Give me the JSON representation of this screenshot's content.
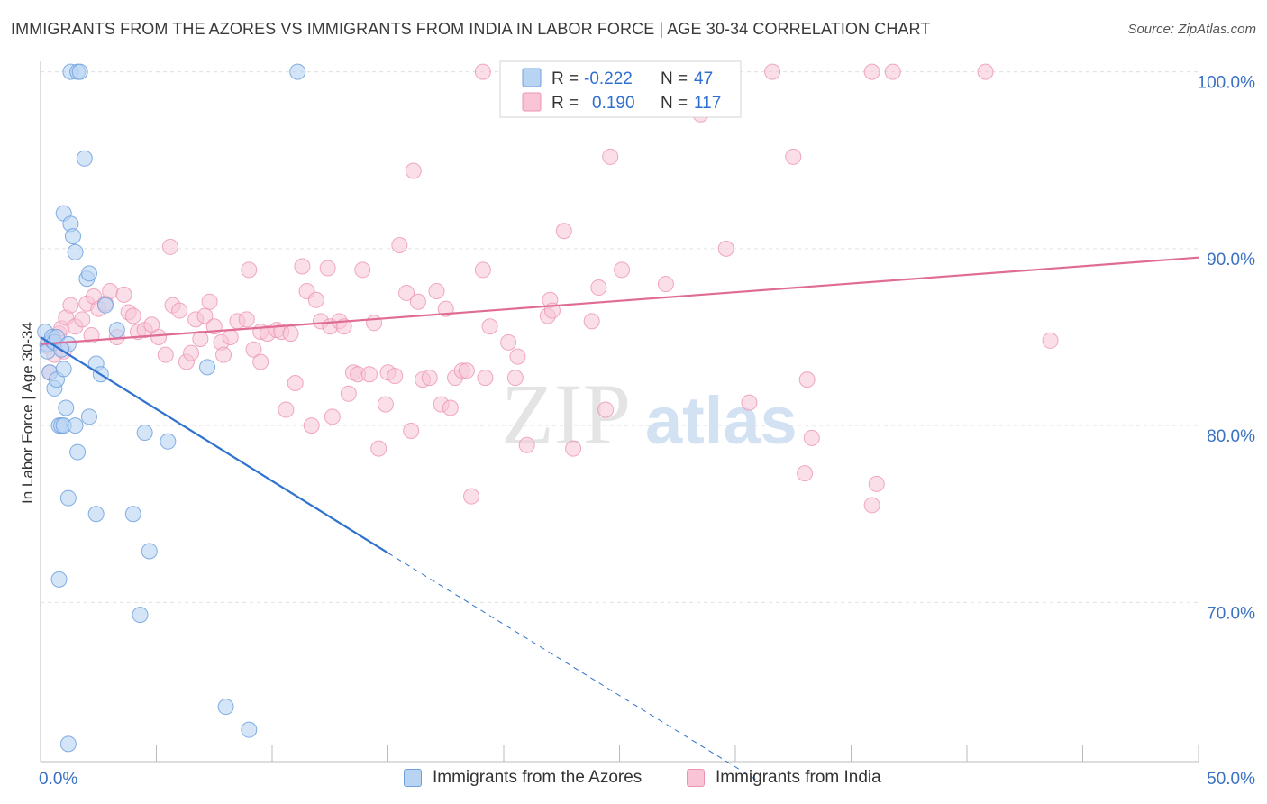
{
  "header": {
    "title": "IMMIGRANTS FROM THE AZORES VS IMMIGRANTS FROM INDIA IN LABOR FORCE | AGE 30-34 CORRELATION CHART",
    "source": "Source: ZipAtlas.com"
  },
  "watermark": {
    "zip": "ZIP",
    "atlas": "atlas"
  },
  "colors": {
    "blue_fill": "#b9d3f3",
    "blue_stroke": "#6fa0de",
    "blue_line": "#2f72d0",
    "pink_fill": "#f8c4d6",
    "pink_stroke": "#ec93b3",
    "pink_line": "#e06b94",
    "axis_label": "#3a72c4",
    "grid": "#e3e3e3"
  },
  "legend_box": {
    "rows": [
      {
        "r_label": "R =",
        "r_value": "-0.222",
        "n_label": "N =",
        "n_value": "47"
      },
      {
        "r_label": "R =",
        "r_value": "0.190",
        "n_label": "N =",
        "n_value": "117"
      }
    ]
  },
  "legend_bottom": {
    "series1": "Immigrants from the Azores",
    "series2": "Immigrants from India"
  },
  "chart_data": {
    "type": "scatter",
    "title": "IMMIGRANTS FROM THE AZORES VS IMMIGRANTS FROM INDIA IN LABOR FORCE | AGE 30-34 CORRELATION CHART",
    "xlabel": "",
    "ylabel": "In Labor Force | Age 30-34",
    "xlim": [
      0,
      50
    ],
    "ylim": [
      61,
      101
    ],
    "x_tick_labels": [
      "0.0%",
      "50.0%"
    ],
    "y_ticks": [
      70,
      80,
      90,
      100
    ],
    "y_tick_labels": [
      "70.0%",
      "80.0%",
      "90.0%",
      "100.0%"
    ],
    "grid": true,
    "series": [
      {
        "name": "Immigrants from the Azores",
        "color": "#b9d3f3",
        "trend": {
          "x": [
            0,
            15
          ],
          "y": [
            85.0,
            72.8
          ],
          "dashed_to": [
            31,
            59.9
          ]
        },
        "points": [
          [
            0.2,
            85.3
          ],
          [
            0.3,
            84.6
          ],
          [
            0.3,
            84.2
          ],
          [
            0.4,
            83.0
          ],
          [
            0.5,
            84.8
          ],
          [
            0.5,
            85.0
          ],
          [
            0.6,
            84.7
          ],
          [
            0.6,
            82.1
          ],
          [
            0.7,
            82.6
          ],
          [
            0.7,
            85.0
          ],
          [
            0.8,
            80.0
          ],
          [
            0.8,
            71.3
          ],
          [
            0.9,
            80.0
          ],
          [
            1.0,
            80.0
          ],
          [
            1.0,
            83.2
          ],
          [
            1.0,
            92.0
          ],
          [
            1.1,
            81.0
          ],
          [
            1.2,
            75.9
          ],
          [
            1.2,
            84.6
          ],
          [
            1.3,
            91.4
          ],
          [
            1.3,
            100.0
          ],
          [
            1.4,
            90.7
          ],
          [
            1.5,
            89.8
          ],
          [
            1.5,
            80.0
          ],
          [
            1.6,
            78.5
          ],
          [
            1.6,
            100.0
          ],
          [
            1.7,
            100.0
          ],
          [
            1.9,
            95.1
          ],
          [
            2.0,
            88.3
          ],
          [
            2.1,
            88.6
          ],
          [
            2.1,
            80.5
          ],
          [
            2.4,
            75.0
          ],
          [
            2.4,
            83.5
          ],
          [
            2.6,
            82.9
          ],
          [
            2.8,
            86.8
          ],
          [
            3.3,
            85.4
          ],
          [
            4.0,
            75.0
          ],
          [
            4.3,
            69.3
          ],
          [
            4.5,
            79.6
          ],
          [
            4.7,
            72.9
          ],
          [
            5.5,
            79.1
          ],
          [
            7.2,
            83.3
          ],
          [
            8.0,
            64.1
          ],
          [
            9.0,
            62.8
          ],
          [
            11.1,
            100.0
          ],
          [
            1.2,
            62.0
          ],
          [
            0.9,
            84.3
          ]
        ]
      },
      {
        "name": "Immigrants from India",
        "color": "#f8c4d6",
        "trend": {
          "x": [
            0,
            50
          ],
          "y": [
            84.6,
            89.5
          ]
        },
        "points": [
          [
            0.3,
            84.5
          ],
          [
            0.4,
            83.0
          ],
          [
            0.5,
            84.8
          ],
          [
            0.6,
            84.0
          ],
          [
            0.8,
            85.2
          ],
          [
            0.9,
            85.5
          ],
          [
            1.0,
            84.2
          ],
          [
            1.1,
            86.1
          ],
          [
            1.3,
            86.8
          ],
          [
            1.5,
            85.6
          ],
          [
            1.8,
            86.0
          ],
          [
            2.0,
            86.9
          ],
          [
            2.2,
            85.1
          ],
          [
            2.3,
            87.3
          ],
          [
            2.5,
            86.6
          ],
          [
            2.8,
            86.9
          ],
          [
            3.0,
            87.6
          ],
          [
            3.3,
            85.0
          ],
          [
            3.6,
            87.4
          ],
          [
            3.8,
            86.4
          ],
          [
            4.0,
            86.2
          ],
          [
            4.2,
            85.3
          ],
          [
            4.5,
            85.4
          ],
          [
            4.8,
            85.7
          ],
          [
            5.1,
            85.0
          ],
          [
            5.4,
            84.0
          ],
          [
            5.7,
            86.8
          ],
          [
            5.6,
            90.1
          ],
          [
            6.0,
            86.5
          ],
          [
            6.3,
            83.6
          ],
          [
            6.5,
            84.1
          ],
          [
            6.7,
            86.0
          ],
          [
            6.9,
            84.9
          ],
          [
            7.1,
            86.2
          ],
          [
            7.3,
            87.0
          ],
          [
            7.5,
            85.6
          ],
          [
            7.8,
            84.7
          ],
          [
            7.9,
            84.0
          ],
          [
            8.2,
            85.0
          ],
          [
            8.5,
            85.9
          ],
          [
            8.9,
            86.0
          ],
          [
            9.0,
            88.8
          ],
          [
            9.2,
            84.3
          ],
          [
            9.5,
            83.6
          ],
          [
            9.5,
            85.3
          ],
          [
            9.8,
            85.2
          ],
          [
            10.2,
            85.4
          ],
          [
            10.4,
            85.3
          ],
          [
            10.6,
            80.9
          ],
          [
            10.8,
            85.2
          ],
          [
            11.0,
            82.4
          ],
          [
            11.3,
            89.0
          ],
          [
            11.5,
            87.6
          ],
          [
            11.7,
            80.0
          ],
          [
            11.9,
            87.1
          ],
          [
            12.1,
            85.9
          ],
          [
            12.4,
            88.9
          ],
          [
            12.5,
            85.6
          ],
          [
            12.6,
            80.5
          ],
          [
            12.9,
            85.9
          ],
          [
            13.1,
            85.6
          ],
          [
            13.3,
            81.8
          ],
          [
            13.5,
            83.0
          ],
          [
            13.7,
            82.9
          ],
          [
            13.9,
            88.8
          ],
          [
            14.2,
            82.9
          ],
          [
            14.4,
            85.8
          ],
          [
            14.6,
            78.7
          ],
          [
            14.9,
            81.2
          ],
          [
            15.0,
            83.0
          ],
          [
            15.3,
            82.8
          ],
          [
            15.5,
            90.2
          ],
          [
            15.8,
            87.5
          ],
          [
            16.0,
            79.7
          ],
          [
            16.1,
            94.4
          ],
          [
            16.3,
            87.0
          ],
          [
            16.5,
            82.6
          ],
          [
            16.8,
            82.7
          ],
          [
            17.1,
            87.6
          ],
          [
            17.3,
            81.2
          ],
          [
            17.5,
            86.6
          ],
          [
            17.7,
            81.0
          ],
          [
            17.9,
            82.7
          ],
          [
            18.2,
            83.1
          ],
          [
            18.4,
            83.1
          ],
          [
            18.6,
            76.0
          ],
          [
            19.1,
            100.0
          ],
          [
            19.4,
            85.6
          ],
          [
            19.1,
            88.8
          ],
          [
            19.2,
            82.7
          ],
          [
            20.2,
            84.7
          ],
          [
            20.5,
            82.7
          ],
          [
            20.6,
            83.9
          ],
          [
            21.0,
            78.9
          ],
          [
            21.9,
            86.2
          ],
          [
            22.0,
            100.0
          ],
          [
            22.0,
            87.1
          ],
          [
            22.1,
            86.5
          ],
          [
            22.6,
            91.0
          ],
          [
            23.0,
            78.7
          ],
          [
            23.8,
            85.9
          ],
          [
            24.1,
            87.8
          ],
          [
            24.4,
            80.9
          ],
          [
            24.6,
            95.2
          ],
          [
            25.1,
            88.8
          ],
          [
            27.0,
            88.0
          ],
          [
            28.5,
            97.6
          ],
          [
            29.6,
            90.0
          ],
          [
            30.6,
            81.3
          ],
          [
            31.6,
            100.0
          ],
          [
            32.5,
            95.2
          ],
          [
            33.0,
            77.3
          ],
          [
            33.1,
            82.6
          ],
          [
            33.3,
            79.3
          ],
          [
            35.9,
            100.0
          ],
          [
            35.9,
            75.5
          ],
          [
            36.8,
            100.0
          ],
          [
            36.1,
            76.7
          ],
          [
            40.8,
            100.0
          ],
          [
            43.6,
            84.8
          ]
        ]
      }
    ]
  }
}
